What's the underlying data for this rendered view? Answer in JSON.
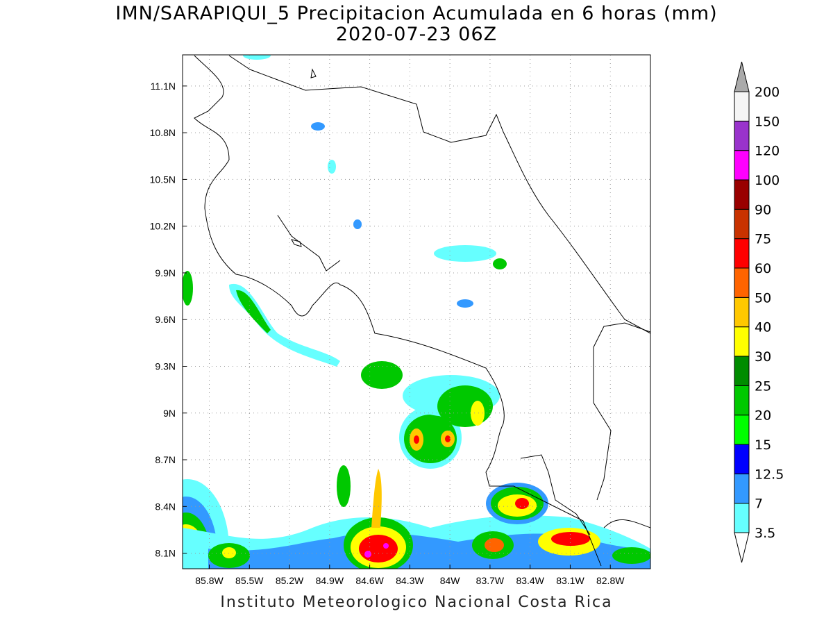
{
  "title": "IMN/SARAPIQUI_5 Precipitacion Acumulada en 6 horas (mm)",
  "subtitle": "2020-07-23 06Z",
  "footer": "Instituto Meteorologico Nacional Costa Rica",
  "map": {
    "lon_range": [
      -86.0,
      -82.5
    ],
    "lat_range": [
      8.0,
      11.3
    ],
    "grid": true,
    "lon_ticks": [
      {
        "value": -85.8,
        "label": "85.8W"
      },
      {
        "value": -85.5,
        "label": "85.5W"
      },
      {
        "value": -85.2,
        "label": "85.2W"
      },
      {
        "value": -84.9,
        "label": "84.9W"
      },
      {
        "value": -84.6,
        "label": "84.6W"
      },
      {
        "value": -84.3,
        "label": "84.3W"
      },
      {
        "value": -84.0,
        "label": "84W"
      },
      {
        "value": -83.7,
        "label": "83.7W"
      },
      {
        "value": -83.4,
        "label": "83.4W"
      },
      {
        "value": -83.1,
        "label": "83.1W"
      },
      {
        "value": -82.8,
        "label": "82.8W"
      }
    ],
    "lat_ticks": [
      {
        "value": 11.1,
        "label": "11.1N"
      },
      {
        "value": 10.8,
        "label": "10.8N"
      },
      {
        "value": 10.5,
        "label": "10.5N"
      },
      {
        "value": 10.2,
        "label": "10.2N"
      },
      {
        "value": 9.9,
        "label": "9.9N"
      },
      {
        "value": 9.6,
        "label": "9.6N"
      },
      {
        "value": 9.3,
        "label": "9.3N"
      },
      {
        "value": 9.0,
        "label": "9N"
      },
      {
        "value": 8.7,
        "label": "8.7N"
      },
      {
        "value": 8.4,
        "label": "8.4N"
      },
      {
        "value": 8.1,
        "label": "8.1N"
      }
    ]
  },
  "colorbar": {
    "levels": [
      "3.5",
      "7",
      "12.5",
      "15",
      "20",
      "25",
      "30",
      "40",
      "50",
      "60",
      "75",
      "90",
      "100",
      "120",
      "150",
      "200"
    ],
    "colors": [
      "#66ffff",
      "#3399ff",
      "#0000ff",
      "#00ff00",
      "#00c800",
      "#008c00",
      "#ffff00",
      "#ffc800",
      "#ff6400",
      "#ff0000",
      "#c83200",
      "#990000",
      "#ff00ff",
      "#9933cc",
      "#f5f5f5"
    ],
    "over_color": "#aaaaaa",
    "under_color": "#ffffff"
  }
}
